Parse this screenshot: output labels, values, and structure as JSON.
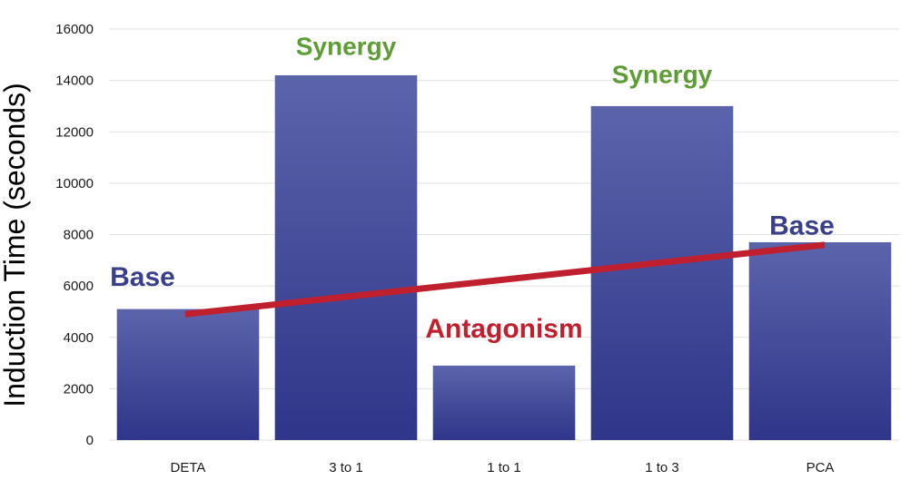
{
  "chart_data": {
    "type": "bar",
    "title": "",
    "xlabel": "",
    "ylabel": "Induction Time (seconds)",
    "ylim": [
      0,
      16000
    ],
    "yticks": [
      0,
      2000,
      4000,
      6000,
      8000,
      10000,
      12000,
      14000,
      16000
    ],
    "grid": true,
    "categories": [
      "DETA",
      "3 to 1",
      "1 to 1",
      "1 to 3",
      "PCA"
    ],
    "values": [
      5100,
      14200,
      2900,
      13000,
      7700
    ],
    "bar_color": "#3a3f8c",
    "trend_line": {
      "from": [
        0,
        4900
      ],
      "to": [
        4,
        7600
      ],
      "color": "#c0202e"
    },
    "annotations": [
      {
        "text": "Base",
        "category": 0,
        "y": 6000,
        "color": "#3a3f8c"
      },
      {
        "text": "Synergy",
        "category": 1,
        "y": 15000,
        "color": "#5e9c35"
      },
      {
        "text": "Antagonism",
        "category": 2,
        "y": 4000,
        "color": "#c0202e"
      },
      {
        "text": "Synergy",
        "category": 3,
        "y": 13900,
        "color": "#5e9c35"
      },
      {
        "text": "Base",
        "category": 4,
        "y": 8000,
        "color": "#3a3f8c"
      }
    ]
  }
}
